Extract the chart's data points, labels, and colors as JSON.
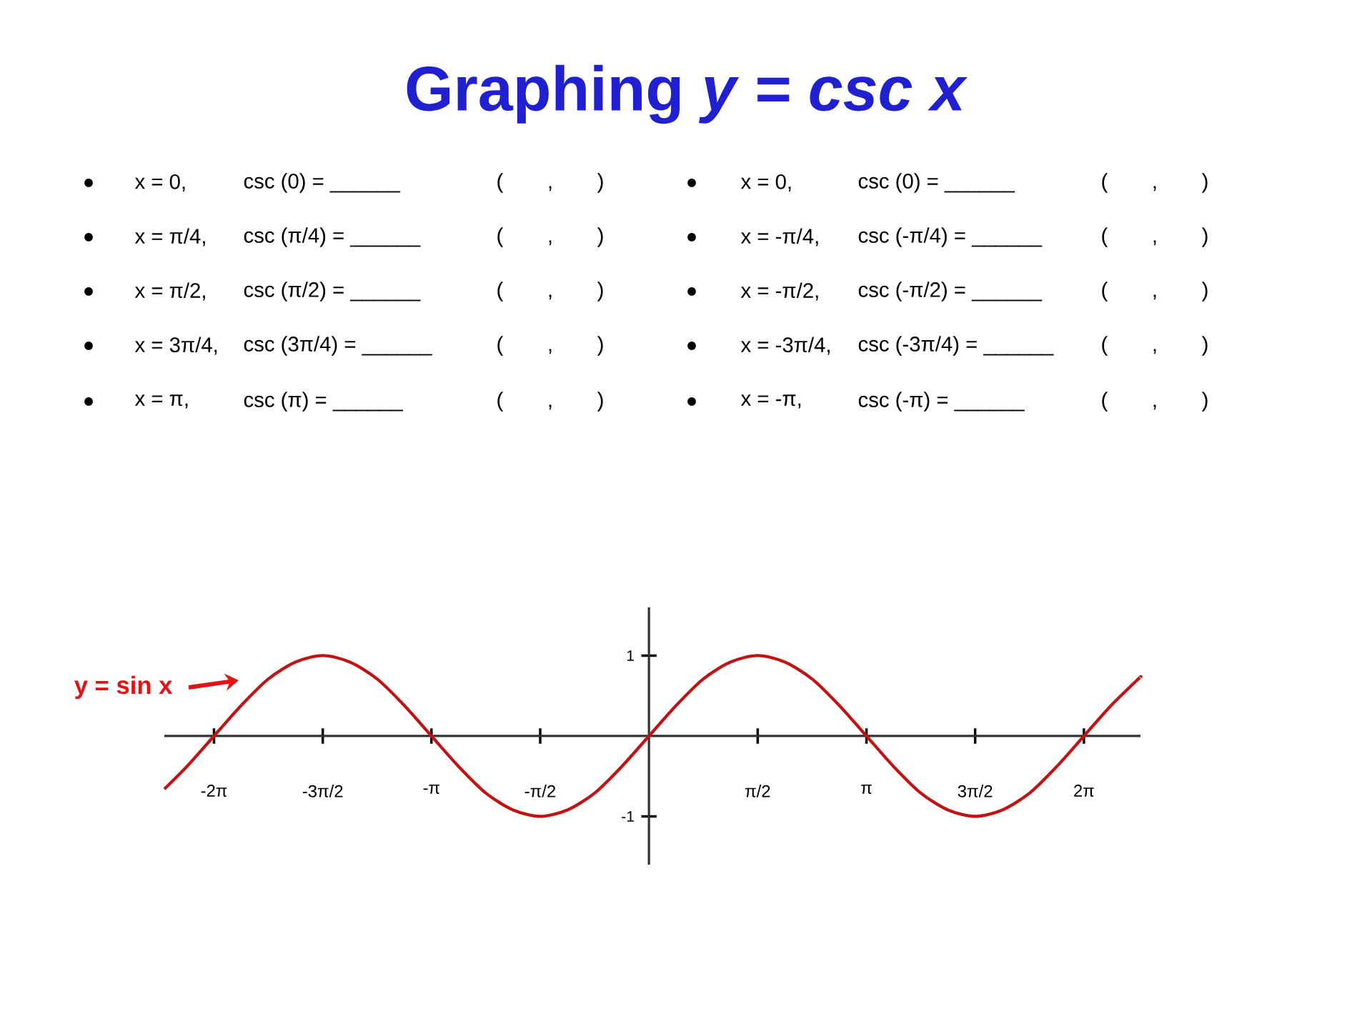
{
  "chart_data": {
    "type": "line",
    "title": "Graphing *y = csc x*",
    "annotations": [
      "x = 0,",
      "csc (0) = ______",
      "( , )",
      "x = π/4,",
      "csc (π/4) = ______",
      "( , )",
      "x = π/2,",
      "csc (π/2) = ______",
      "( , )",
      "x = 3π/4,",
      "csc (3π/4) = ______",
      "( , )",
      "x = π,",
      "csc (π) = ______",
      "( , )",
      "x = 0,",
      "csc (0) = ______",
      "( , )",
      "x = -π/4,",
      "csc (-π/4) = ______",
      "( , )",
      "x = -π/2,",
      "csc (-π/2) = ______",
      "( , )",
      "x = -3π/4,",
      "csc (-3π/4) = ______",
      "( , )",
      "x = -π,",
      "csc (-π) = ______",
      "( , )"
    ],
    "series": [
      {
        "name": "y = sin x",
        "color": "#c01414",
        "x": [
          -7.0,
          -6.676,
          -6.283,
          -5.89,
          -5.498,
          -5.105,
          -4.712,
          -4.32,
          -3.927,
          -3.534,
          -3.142,
          -2.749,
          -2.356,
          -1.963,
          -1.571,
          -1.178,
          -0.785,
          -0.393,
          0,
          0.393,
          0.785,
          1.178,
          1.571,
          1.963,
          2.356,
          2.749,
          3.142,
          3.534,
          3.927,
          4.32,
          4.712,
          5.105,
          5.498,
          5.89,
          6.283,
          6.676,
          7.069,
          7.1
        ],
        "values": [
          -0.66,
          -0.38,
          0,
          0.38,
          0.71,
          0.92,
          1,
          0.92,
          0.71,
          0.38,
          0,
          -0.38,
          -0.71,
          -0.92,
          -1,
          -0.92,
          -0.71,
          -0.38,
          0,
          0.38,
          0.71,
          0.92,
          1,
          0.92,
          0.71,
          0.38,
          0,
          -0.38,
          -0.71,
          -0.92,
          -1,
          -0.92,
          -0.71,
          -0.38,
          0,
          0.38,
          0.71,
          0.73
        ]
      }
    ],
    "xlim": [
      -7.0,
      7.1
    ],
    "ylim": [
      -1.6,
      1.6
    ],
    "xticks": [
      {
        "value": -6.283,
        "label": "-2π"
      },
      {
        "value": -4.712,
        "label": "-3π/2"
      },
      {
        "value": -3.142,
        "label": "-π"
      },
      {
        "value": -1.571,
        "label": "-π/2"
      },
      {
        "value": 1.571,
        "label": "π/2"
      },
      {
        "value": 3.142,
        "label": "π"
      },
      {
        "value": 4.712,
        "label": "3π/2"
      },
      {
        "value": 6.283,
        "label": "2π"
      }
    ],
    "yticks": [
      -1,
      1
    ],
    "grid": false,
    "legend": false
  }
}
